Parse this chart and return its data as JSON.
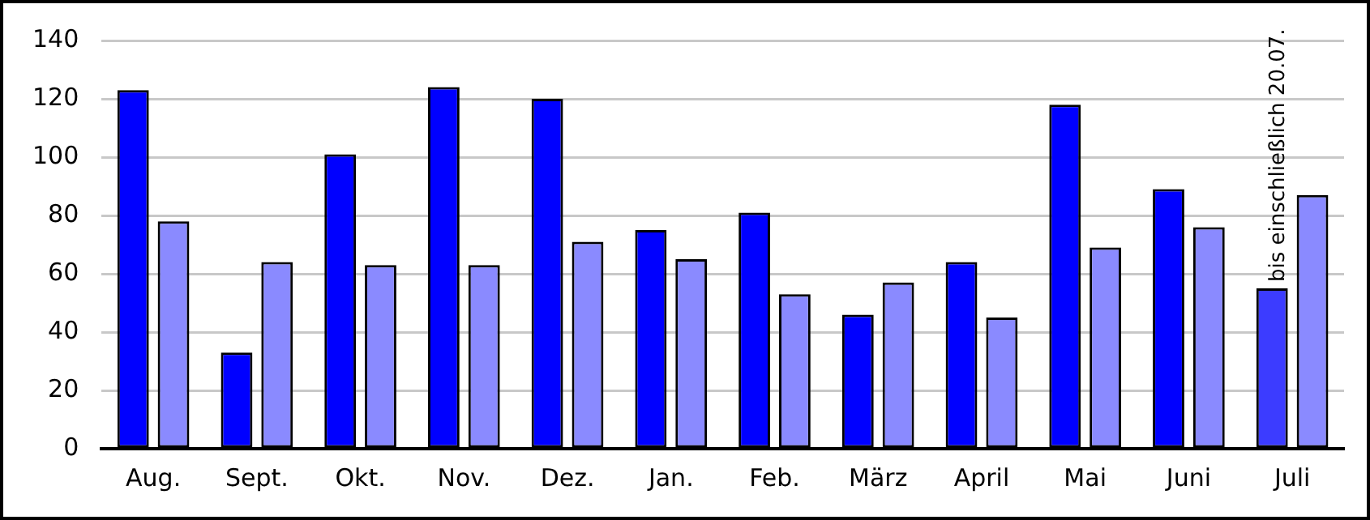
{
  "chart_data": {
    "type": "bar",
    "categories": [
      "Aug.",
      "Sept.",
      "Okt.",
      "Nov.",
      "Dez.",
      "Jan.",
      "Feb.",
      "März",
      "April",
      "Mai",
      "Juni",
      "Juli"
    ],
    "series": [
      {
        "color": "#0000ff",
        "colors": [
          null,
          null,
          null,
          null,
          null,
          null,
          null,
          null,
          null,
          null,
          null,
          "#3c3cff"
        ],
        "values": [
          123,
          33,
          101,
          124,
          120,
          75,
          81,
          46,
          64,
          118,
          89,
          55
        ]
      },
      {
        "color": "#8a8aff",
        "values": [
          78,
          64,
          63,
          63,
          71,
          65,
          53,
          57,
          45,
          69,
          76,
          87
        ]
      }
    ],
    "ylim": [
      0,
      140
    ],
    "yticks": [
      0,
      20,
      40,
      60,
      80,
      100,
      120,
      140
    ],
    "grid": "y",
    "annotations": [
      {
        "text": "bis einschließlich 20.07.",
        "x": "Juli",
        "y": 55
      }
    ]
  }
}
